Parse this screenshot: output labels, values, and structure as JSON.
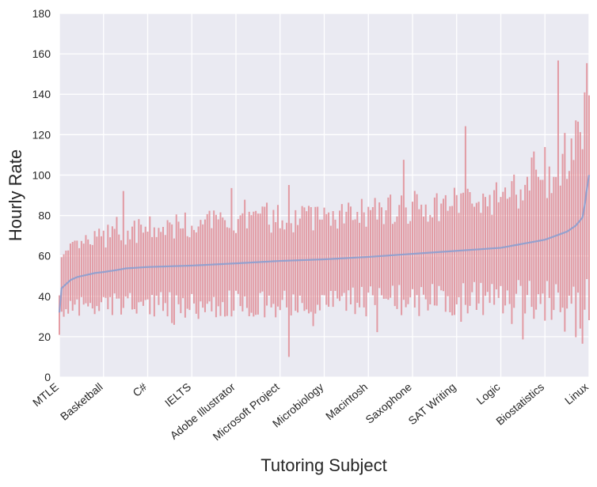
{
  "chart_data": {
    "type": "errorbar-line",
    "title": "",
    "xlabel": "Tutoring Subject",
    "ylabel": "Hourly Rate",
    "ylim": [
      0,
      180
    ],
    "yticks": [
      0,
      20,
      40,
      60,
      80,
      100,
      120,
      140,
      160,
      180
    ],
    "x_tick_labels": [
      "MTLE",
      "Basketball",
      "C#",
      "IELTS",
      "Adobe Illustrator",
      "Microsoft Project",
      "Microbiology",
      "Macintosh",
      "Saxophone",
      "SAT Writing",
      "Logic",
      "Biostatistics",
      "Linux"
    ],
    "x_tick_interval": 20,
    "n_subjects": 241,
    "mean_profile": {
      "x": [
        0,
        1,
        3,
        5,
        8,
        12,
        16,
        20,
        26,
        30,
        40,
        60,
        80,
        100,
        120,
        140,
        160,
        180,
        200,
        210,
        220,
        225,
        230,
        234,
        237,
        238,
        239,
        240
      ],
      "y": [
        32,
        44,
        46,
        48,
        49.5,
        50.5,
        51.5,
        52,
        53,
        53.8,
        54.5,
        55.2,
        56.3,
        57.5,
        58.3,
        59.5,
        61,
        62.5,
        64,
        66,
        68,
        70,
        72,
        75,
        79,
        85,
        93,
        100
      ]
    },
    "error_half_width_profile": {
      "x": [
        0,
        20,
        60,
        100,
        140,
        180,
        200,
        220,
        230,
        240
      ],
      "y": [
        13,
        17,
        20,
        21,
        22,
        24,
        25,
        30,
        38,
        55
      ]
    },
    "colors": {
      "background": "#EAEAF2",
      "grid": "#FFFFFF",
      "line": "#8C9ECF",
      "error_bars": "#E0868E",
      "text": "#262626"
    }
  }
}
